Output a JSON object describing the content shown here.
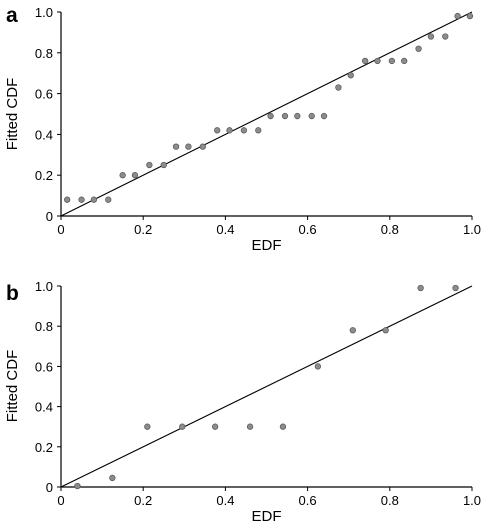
{
  "chart_data": [
    {
      "type": "scatter",
      "panel_label": "a",
      "xlabel": "EDF",
      "ylabel": "Fitted CDF",
      "xlim": [
        0,
        1.0
      ],
      "ylim": [
        0,
        1.0
      ],
      "xticks": [
        "0",
        "0.2",
        "0.4",
        "0.6",
        "0.8",
        "1.0"
      ],
      "yticks": [
        "0",
        "0.2",
        "0.4",
        "0.6",
        "0.8",
        "1.0"
      ],
      "grid": false,
      "marker_color": "#8c8c8c",
      "reference_line": {
        "x": [
          0,
          1
        ],
        "y": [
          0,
          1
        ]
      },
      "x": [
        0.015,
        0.05,
        0.08,
        0.115,
        0.15,
        0.18,
        0.215,
        0.25,
        0.28,
        0.31,
        0.345,
        0.38,
        0.41,
        0.445,
        0.48,
        0.51,
        0.545,
        0.575,
        0.61,
        0.64,
        0.675,
        0.705,
        0.74,
        0.77,
        0.805,
        0.835,
        0.87,
        0.9,
        0.935,
        0.965,
        0.995
      ],
      "y": [
        0.08,
        0.08,
        0.08,
        0.08,
        0.2,
        0.2,
        0.25,
        0.25,
        0.34,
        0.34,
        0.34,
        0.42,
        0.42,
        0.42,
        0.42,
        0.49,
        0.49,
        0.49,
        0.49,
        0.49,
        0.63,
        0.69,
        0.76,
        0.76,
        0.76,
        0.76,
        0.82,
        0.88,
        0.88,
        0.98,
        0.98
      ]
    },
    {
      "type": "scatter",
      "panel_label": "b",
      "xlabel": "EDF",
      "ylabel": "Fitted CDF",
      "xlim": [
        0,
        1.0
      ],
      "ylim": [
        0,
        1.0
      ],
      "xticks": [
        "0",
        "0.2",
        "0.4",
        "0.6",
        "0.8",
        "1.0"
      ],
      "yticks": [
        "0",
        "0.2",
        "0.4",
        "0.6",
        "0.8",
        "1.0"
      ],
      "grid": false,
      "marker_color": "#8c8c8c",
      "reference_line": {
        "x": [
          0,
          1
        ],
        "y": [
          0,
          1
        ]
      },
      "x": [
        0.04,
        0.125,
        0.21,
        0.295,
        0.375,
        0.46,
        0.54,
        0.625,
        0.71,
        0.79,
        0.875,
        0.96
      ],
      "y": [
        0.005,
        0.045,
        0.3,
        0.3,
        0.3,
        0.3,
        0.3,
        0.6,
        0.78,
        0.78,
        0.99,
        0.99
      ]
    }
  ]
}
